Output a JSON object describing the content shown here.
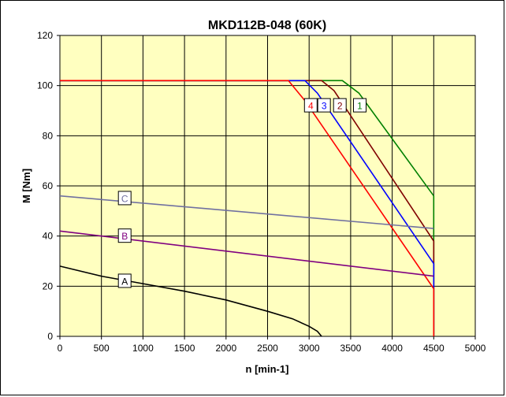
{
  "chart_data": {
    "type": "line",
    "title": "MKD112B-048 (60K)",
    "xlabel": "n [min-1]",
    "ylabel": "M [Nm]",
    "xlim": [
      0,
      5000
    ],
    "ylim": [
      0,
      120
    ],
    "x_ticks": [
      "0",
      "500",
      "1000",
      "1500",
      "2000",
      "2500",
      "3000",
      "3500",
      "4000",
      "4500",
      "5000"
    ],
    "y_ticks": [
      "0",
      "20",
      "40",
      "60",
      "80",
      "100",
      "120"
    ],
    "grid": true,
    "plot_background": "#ffffc0",
    "series": [
      {
        "name": "1",
        "color": "#008000",
        "label_at": [
          3610,
          92
        ],
        "points": [
          [
            0,
            102
          ],
          [
            3400,
            102
          ],
          [
            3600,
            97
          ],
          [
            4500,
            56
          ],
          [
            4500,
            0
          ]
        ]
      },
      {
        "name": "2",
        "color": "#800000",
        "label_at": [
          3370,
          92
        ],
        "points": [
          [
            0,
            102
          ],
          [
            3150,
            102
          ],
          [
            3300,
            98
          ],
          [
            4500,
            38
          ],
          [
            4500,
            0
          ]
        ]
      },
      {
        "name": "3",
        "color": "#0000ff",
        "label_at": [
          3180,
          92
        ],
        "points": [
          [
            0,
            102
          ],
          [
            2950,
            102
          ],
          [
            3100,
            97
          ],
          [
            4500,
            29
          ],
          [
            4500,
            0
          ]
        ]
      },
      {
        "name": "4",
        "color": "#ff0000",
        "label_at": [
          3020,
          92
        ],
        "points": [
          [
            0,
            102
          ],
          [
            2750,
            102
          ],
          [
            2950,
            94
          ],
          [
            4500,
            19
          ],
          [
            4500,
            0
          ]
        ]
      },
      {
        "name": "C",
        "color": "#7070a0",
        "label_at": [
          780,
          55
        ],
        "points": [
          [
            0,
            56
          ],
          [
            4500,
            43
          ]
        ]
      },
      {
        "name": "B",
        "color": "#800080",
        "label_at": [
          780,
          40
        ],
        "points": [
          [
            0,
            42
          ],
          [
            4500,
            24
          ]
        ]
      },
      {
        "name": "A",
        "color": "#000000",
        "label_at": [
          780,
          22
        ],
        "points": [
          [
            0,
            28
          ],
          [
            500,
            24
          ],
          [
            1000,
            21
          ],
          [
            1500,
            18
          ],
          [
            2000,
            14.5
          ],
          [
            2500,
            10
          ],
          [
            2800,
            7
          ],
          [
            3000,
            4
          ],
          [
            3100,
            2
          ],
          [
            3150,
            0
          ]
        ]
      }
    ]
  }
}
